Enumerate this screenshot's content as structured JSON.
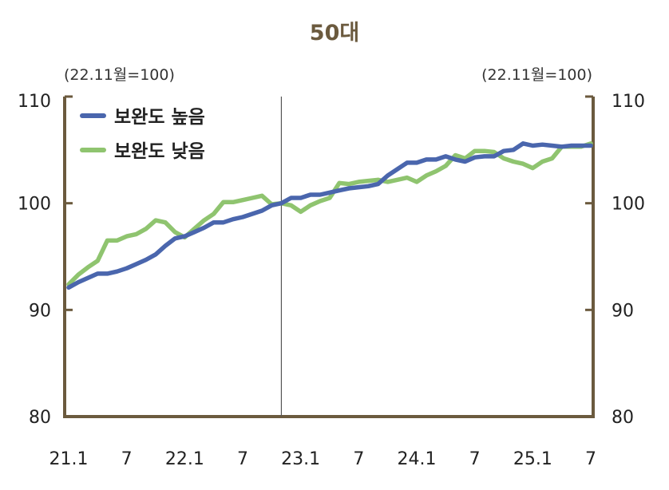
{
  "chart_data": {
    "type": "line",
    "title": "50대",
    "unit_left": "(22.11월=100)",
    "unit_right": "(22.11월=100)",
    "ylim": [
      80,
      110
    ],
    "y_ticks": [
      80,
      90,
      100,
      110
    ],
    "x_tick_labels": [
      "21.1",
      "7",
      "22.1",
      "7",
      "23.1",
      "7",
      "24.1",
      "7",
      "25.1",
      "7"
    ],
    "x_tick_months": [
      0,
      6,
      12,
      18,
      24,
      30,
      36,
      42,
      48,
      54
    ],
    "reference_line_month": 22,
    "legend_placement": "top-left",
    "colors": {
      "axis": "#6b5a3e",
      "high": "#4a66ad",
      "low": "#8fc46f"
    },
    "series": [
      {
        "name": "보완도 높음",
        "values": [
          92.1,
          92.6,
          93.0,
          93.4,
          93.4,
          93.6,
          93.9,
          94.3,
          94.7,
          95.2,
          96.0,
          96.7,
          96.9,
          97.3,
          97.7,
          98.2,
          98.2,
          98.5,
          98.7,
          99.0,
          99.3,
          99.8,
          100.0,
          100.5,
          100.5,
          100.8,
          100.8,
          101.0,
          101.2,
          101.4,
          101.5,
          101.6,
          101.8,
          102.6,
          103.2,
          103.8,
          103.8,
          104.1,
          104.1,
          104.4,
          104.1,
          103.9,
          104.3,
          104.4,
          104.4,
          104.9,
          105.0,
          105.6,
          105.4,
          105.5,
          105.4,
          105.3,
          105.4,
          105.4,
          105.4
        ]
      },
      {
        "name": "보완도 낮음",
        "values": [
          92.4,
          93.3,
          94.0,
          94.6,
          96.5,
          96.5,
          96.9,
          97.1,
          97.6,
          98.4,
          98.2,
          97.3,
          96.8,
          97.6,
          98.4,
          99.0,
          100.1,
          100.1,
          100.3,
          100.5,
          100.7,
          99.9,
          100.0,
          99.8,
          99.2,
          99.8,
          100.2,
          100.5,
          101.9,
          101.8,
          102.0,
          102.1,
          102.2,
          102.0,
          102.2,
          102.4,
          102.0,
          102.6,
          103.0,
          103.5,
          104.5,
          104.2,
          104.9,
          104.9,
          104.8,
          104.2,
          103.9,
          103.7,
          103.3,
          103.9,
          104.2,
          105.3,
          105.3,
          105.3,
          105.6
        ]
      }
    ]
  }
}
